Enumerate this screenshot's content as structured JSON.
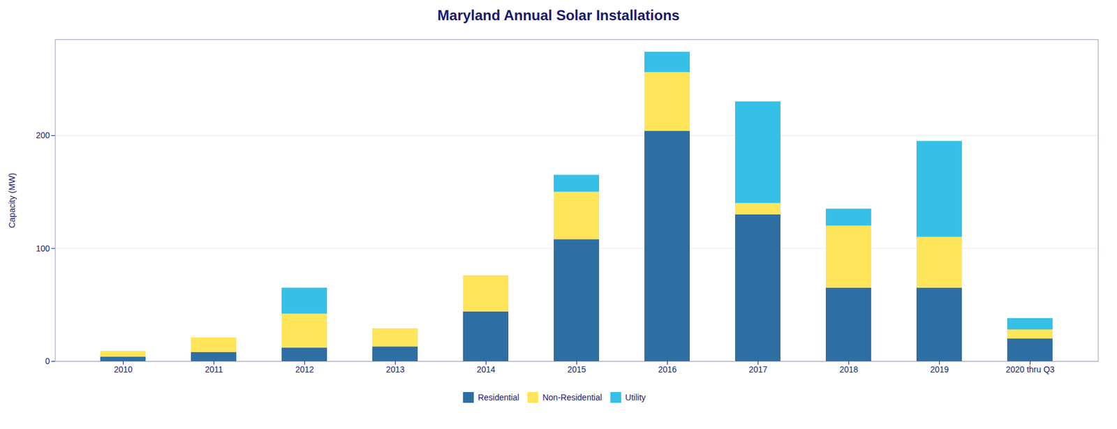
{
  "chart_data": {
    "type": "bar",
    "stacked": true,
    "title": "Maryland Annual Solar Installations",
    "ylabel": "Capacity (MW)",
    "categories": [
      "2010",
      "2011",
      "2012",
      "2013",
      "2014",
      "2015",
      "2016",
      "2017",
      "2018",
      "2019",
      "2020 thru Q3"
    ],
    "series": [
      {
        "name": "Residential",
        "color": "#2e6fa3",
        "values": [
          4,
          8,
          12,
          13,
          44,
          108,
          204,
          130,
          65,
          65,
          20
        ]
      },
      {
        "name": "Non-Residential",
        "color": "#ffe55a",
        "values": [
          5,
          13,
          30,
          16,
          32,
          42,
          52,
          10,
          55,
          45,
          8
        ]
      },
      {
        "name": "Utility",
        "color": "#36c0e8",
        "values": [
          0,
          0,
          23,
          0,
          0,
          15,
          18,
          90,
          15,
          85,
          10
        ]
      }
    ],
    "ylim": [
      0,
      285
    ],
    "yticks": [
      0,
      100,
      200
    ],
    "grid": true,
    "legend": "bottom"
  }
}
